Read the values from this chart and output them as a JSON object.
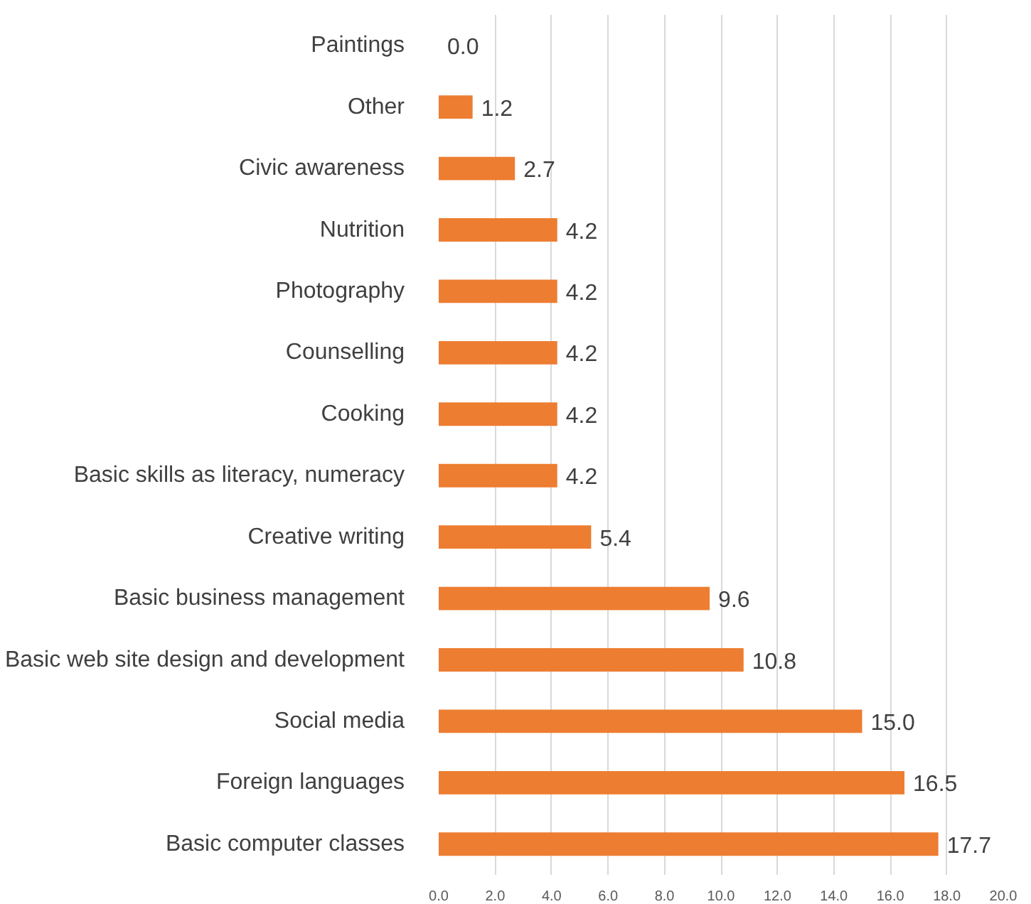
{
  "chart_data": {
    "type": "bar",
    "orientation": "horizontal",
    "categories": [
      "Paintings",
      "Other",
      "Civic awareness",
      "Nutrition",
      "Photography",
      "Counselling",
      "Cooking",
      "Basic skills as literacy, numeracy",
      "Creative writing",
      "Basic business management",
      "Basic web site design and development",
      "Social media",
      "Foreign languages",
      "Basic computer classes"
    ],
    "series": [
      {
        "color": "#ed7d31",
        "values": [
          0.0,
          1.2,
          2.7,
          4.2,
          4.2,
          4.2,
          4.2,
          4.2,
          5.4,
          9.6,
          10.8,
          15.0,
          16.5,
          17.7
        ],
        "value_labels": [
          "0.0",
          "1.2",
          "2.7",
          "4.2",
          "4.2",
          "4.2",
          "4.2",
          "4.2",
          "5.4",
          "9.6",
          "10.8",
          "15.0",
          "16.5",
          "17.7"
        ]
      }
    ],
    "xlim": [
      0,
      20
    ],
    "xticks": [
      {
        "value": 0,
        "label": "0.0"
      },
      {
        "value": 2,
        "label": "2.0"
      },
      {
        "value": 4,
        "label": "4.0"
      },
      {
        "value": 6,
        "label": "6.0"
      },
      {
        "value": 8,
        "label": "8.0"
      },
      {
        "value": 10,
        "label": "10.0"
      },
      {
        "value": 12,
        "label": "12.0"
      },
      {
        "value": 14,
        "label": "14.0"
      },
      {
        "value": 16,
        "label": "16.0"
      },
      {
        "value": 18,
        "label": "18.0"
      },
      {
        "value": 20,
        "label": "20.0"
      }
    ],
    "grid": "x"
  }
}
